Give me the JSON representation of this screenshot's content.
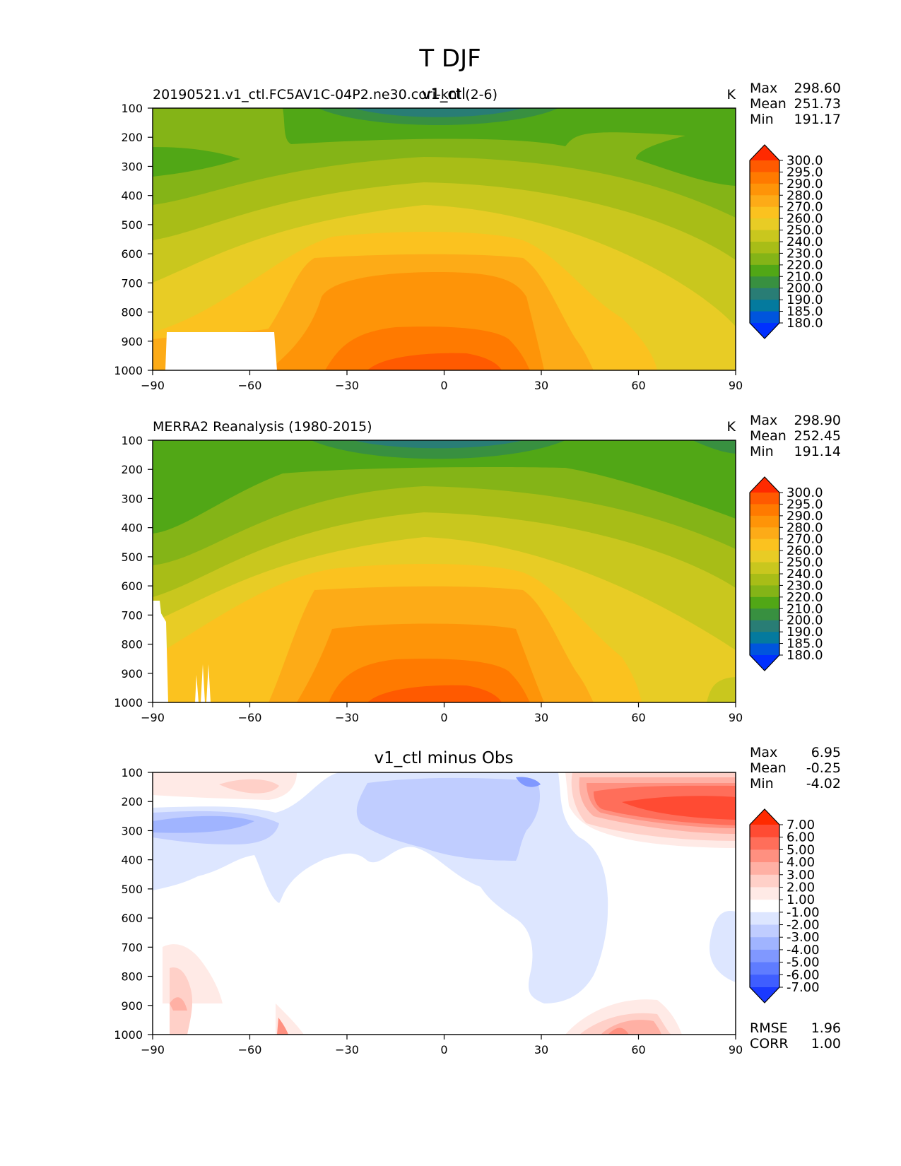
{
  "figure_title": "T DJF",
  "chart_data": [
    {
      "type": "contour",
      "id": "test",
      "title": "v1_ctl",
      "left_label": "20190521.v1_ctl.FC5AV1C-04P2.ne30.cori-knl (2-6)",
      "units": "K",
      "x_ticks": [
        -90,
        -60,
        -30,
        0,
        30,
        60,
        90
      ],
      "xlim": [
        -90,
        90
      ],
      "y_ticks": [
        100,
        200,
        300,
        400,
        500,
        600,
        700,
        800,
        900,
        1000
      ],
      "ylim": [
        1000,
        100
      ],
      "stats": [
        {
          "label": "Max",
          "value": "298.60"
        },
        {
          "label": "Mean",
          "value": "251.73"
        },
        {
          "label": "Min",
          "value": "191.17"
        }
      ],
      "colorbar_levels": [
        "300.0",
        "295.0",
        "290.0",
        "280.0",
        "270.0",
        "260.0",
        "250.0",
        "240.0",
        "230.0",
        "220.0",
        "210.0",
        "200.0",
        "190.0",
        "185.0",
        "180.0"
      ],
      "colorbar_colors": [
        "#ff2a00",
        "#ff5a00",
        "#ff7a00",
        "#fe9408",
        "#fdab17",
        "#fbc21f",
        "#e8cc25",
        "#c9c71e",
        "#a8bd17",
        "#84b417",
        "#51a716",
        "#389040",
        "#297d75",
        "#047a9e",
        "#0055dd",
        "#0030ff"
      ]
    },
    {
      "type": "contour",
      "id": "ref",
      "title": "",
      "left_label": "MERRA2 Reanalysis (1980-2015)",
      "units": "K",
      "x_ticks": [
        -90,
        -60,
        -30,
        0,
        30,
        60,
        90
      ],
      "xlim": [
        -90,
        90
      ],
      "y_ticks": [
        100,
        200,
        300,
        400,
        500,
        600,
        700,
        800,
        900,
        1000
      ],
      "ylim": [
        1000,
        100
      ],
      "stats": [
        {
          "label": "Max",
          "value": "298.90"
        },
        {
          "label": "Mean",
          "value": "252.45"
        },
        {
          "label": "Min",
          "value": "191.14"
        }
      ],
      "colorbar_levels": [
        "300.0",
        "295.0",
        "290.0",
        "280.0",
        "270.0",
        "260.0",
        "250.0",
        "240.0",
        "230.0",
        "220.0",
        "210.0",
        "200.0",
        "190.0",
        "185.0",
        "180.0"
      ],
      "colorbar_colors": [
        "#ff2a00",
        "#ff5a00",
        "#ff7a00",
        "#fe9408",
        "#fdab17",
        "#fbc21f",
        "#e8cc25",
        "#c9c71e",
        "#a8bd17",
        "#84b417",
        "#51a716",
        "#389040",
        "#297d75",
        "#047a9e",
        "#0055dd",
        "#0030ff"
      ]
    },
    {
      "type": "contour",
      "id": "diff",
      "title": "v1_ctl minus Obs",
      "left_label": "",
      "units": "",
      "x_ticks": [
        -90,
        -60,
        -30,
        0,
        30,
        60,
        90
      ],
      "xlim": [
        -90,
        90
      ],
      "y_ticks": [
        100,
        200,
        300,
        400,
        500,
        600,
        700,
        800,
        900,
        1000
      ],
      "ylim": [
        1000,
        100
      ],
      "stats": [
        {
          "label": "Max",
          "value": "6.95"
        },
        {
          "label": "Mean",
          "value": "-0.25"
        },
        {
          "label": "Min",
          "value": "-4.02"
        }
      ],
      "colorbar_levels": [
        "7.00",
        "6.00",
        "5.00",
        "4.00",
        "3.00",
        "2.00",
        "1.00",
        "-1.00",
        "-2.00",
        "-3.00",
        "-4.00",
        "-5.00",
        "-6.00",
        "-7.00"
      ],
      "colorbar_colors": [
        "#ff2a00",
        "#ff4b33",
        "#ff6e5a",
        "#ff9080",
        "#ffb0a4",
        "#ffd0c8",
        "#ffeae6",
        "#ffffff",
        "#dde6ff",
        "#c0cdff",
        "#a0b4ff",
        "#8098ff",
        "#5f7cff",
        "#3f5eff",
        "#1a3aff"
      ],
      "bottom_stats": [
        {
          "label": "RMSE",
          "value": "1.96"
        },
        {
          "label": "CORR",
          "value": "1.00"
        }
      ]
    }
  ]
}
